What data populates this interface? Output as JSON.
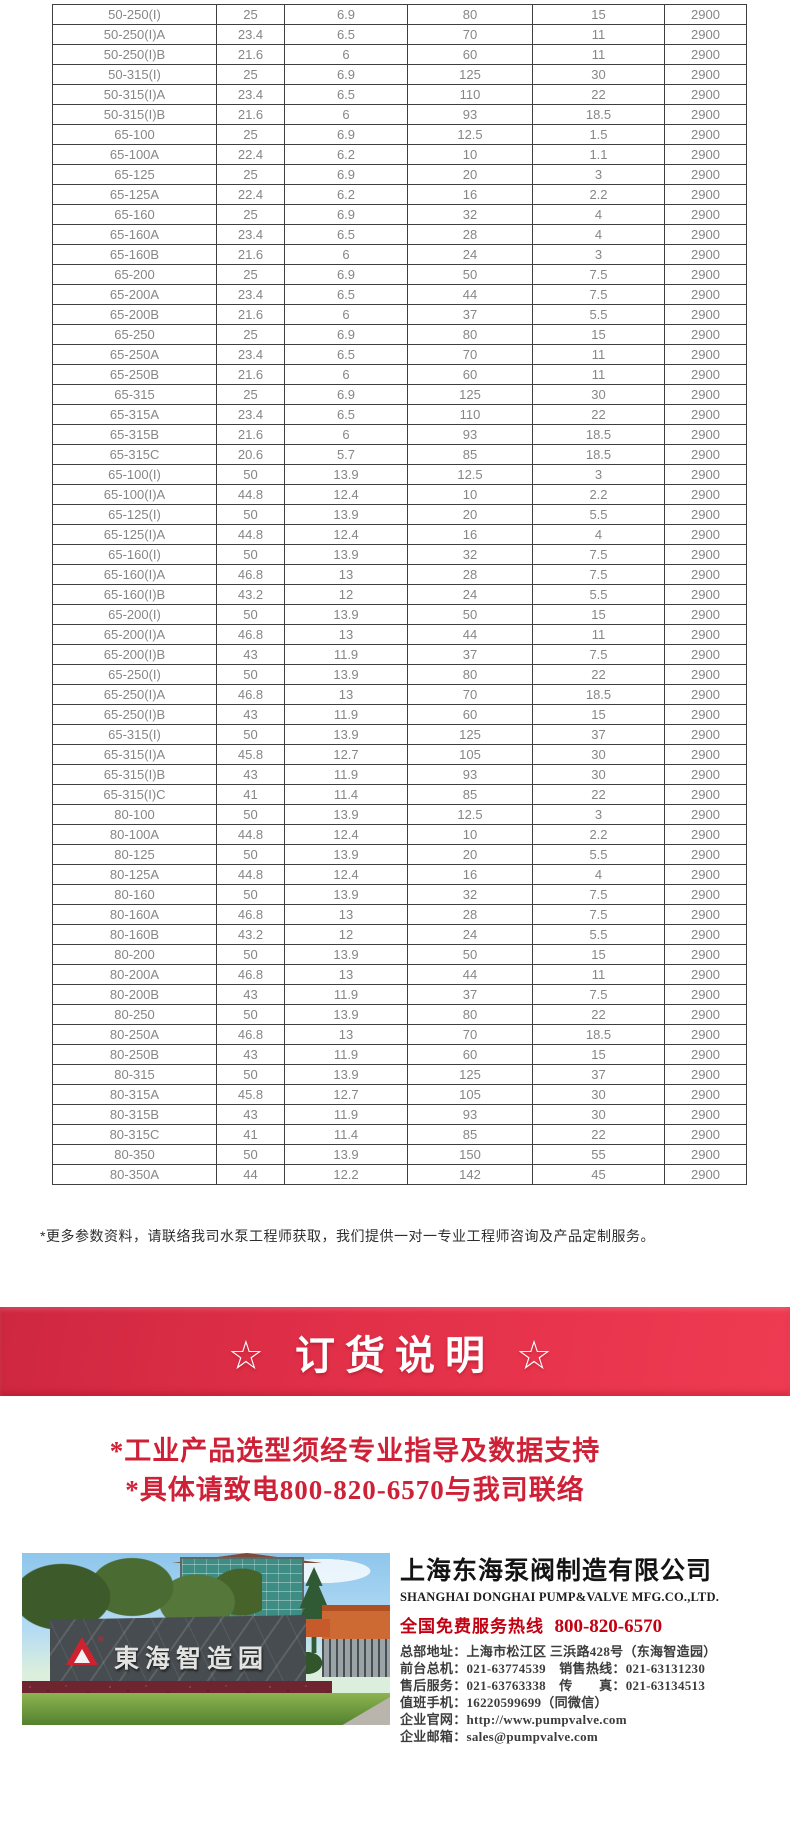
{
  "table": {
    "rows": [
      [
        "50-250(I)",
        "25",
        "6.9",
        "80",
        "15",
        "2900"
      ],
      [
        "50-250(I)A",
        "23.4",
        "6.5",
        "70",
        "11",
        "2900"
      ],
      [
        "50-250(I)B",
        "21.6",
        "6",
        "60",
        "11",
        "2900"
      ],
      [
        "50-315(I)",
        "25",
        "6.9",
        "125",
        "30",
        "2900"
      ],
      [
        "50-315(I)A",
        "23.4",
        "6.5",
        "110",
        "22",
        "2900"
      ],
      [
        "50-315(I)B",
        "21.6",
        "6",
        "93",
        "18.5",
        "2900"
      ],
      [
        "65-100",
        "25",
        "6.9",
        "12.5",
        "1.5",
        "2900"
      ],
      [
        "65-100A",
        "22.4",
        "6.2",
        "10",
        "1.1",
        "2900"
      ],
      [
        "65-125",
        "25",
        "6.9",
        "20",
        "3",
        "2900"
      ],
      [
        "65-125A",
        "22.4",
        "6.2",
        "16",
        "2.2",
        "2900"
      ],
      [
        "65-160",
        "25",
        "6.9",
        "32",
        "4",
        "2900"
      ],
      [
        "65-160A",
        "23.4",
        "6.5",
        "28",
        "4",
        "2900"
      ],
      [
        "65-160B",
        "21.6",
        "6",
        "24",
        "3",
        "2900"
      ],
      [
        "65-200",
        "25",
        "6.9",
        "50",
        "7.5",
        "2900"
      ],
      [
        "65-200A",
        "23.4",
        "6.5",
        "44",
        "7.5",
        "2900"
      ],
      [
        "65-200B",
        "21.6",
        "6",
        "37",
        "5.5",
        "2900"
      ],
      [
        "65-250",
        "25",
        "6.9",
        "80",
        "15",
        "2900"
      ],
      [
        "65-250A",
        "23.4",
        "6.5",
        "70",
        "11",
        "2900"
      ],
      [
        "65-250B",
        "21.6",
        "6",
        "60",
        "11",
        "2900"
      ],
      [
        "65-315",
        "25",
        "6.9",
        "125",
        "30",
        "2900"
      ],
      [
        "65-315A",
        "23.4",
        "6.5",
        "110",
        "22",
        "2900"
      ],
      [
        "65-315B",
        "21.6",
        "6",
        "93",
        "18.5",
        "2900"
      ],
      [
        "65-315C",
        "20.6",
        "5.7",
        "85",
        "18.5",
        "2900"
      ],
      [
        "65-100(I)",
        "50",
        "13.9",
        "12.5",
        "3",
        "2900"
      ],
      [
        "65-100(I)A",
        "44.8",
        "12.4",
        "10",
        "2.2",
        "2900"
      ],
      [
        "65-125(I)",
        "50",
        "13.9",
        "20",
        "5.5",
        "2900"
      ],
      [
        "65-125(I)A",
        "44.8",
        "12.4",
        "16",
        "4",
        "2900"
      ],
      [
        "65-160(I)",
        "50",
        "13.9",
        "32",
        "7.5",
        "2900"
      ],
      [
        "65-160(I)A",
        "46.8",
        "13",
        "28",
        "7.5",
        "2900"
      ],
      [
        "65-160(I)B",
        "43.2",
        "12",
        "24",
        "5.5",
        "2900"
      ],
      [
        "65-200(I)",
        "50",
        "13.9",
        "50",
        "15",
        "2900"
      ],
      [
        "65-200(I)A",
        "46.8",
        "13",
        "44",
        "11",
        "2900"
      ],
      [
        "65-200(I)B",
        "43",
        "11.9",
        "37",
        "7.5",
        "2900"
      ],
      [
        "65-250(I)",
        "50",
        "13.9",
        "80",
        "22",
        "2900"
      ],
      [
        "65-250(I)A",
        "46.8",
        "13",
        "70",
        "18.5",
        "2900"
      ],
      [
        "65-250(I)B",
        "43",
        "11.9",
        "60",
        "15",
        "2900"
      ],
      [
        "65-315(I)",
        "50",
        "13.9",
        "125",
        "37",
        "2900"
      ],
      [
        "65-315(I)A",
        "45.8",
        "12.7",
        "105",
        "30",
        "2900"
      ],
      [
        "65-315(I)B",
        "43",
        "11.9",
        "93",
        "30",
        "2900"
      ],
      [
        "65-315(I)C",
        "41",
        "11.4",
        "85",
        "22",
        "2900"
      ],
      [
        "80-100",
        "50",
        "13.9",
        "12.5",
        "3",
        "2900"
      ],
      [
        "80-100A",
        "44.8",
        "12.4",
        "10",
        "2.2",
        "2900"
      ],
      [
        "80-125",
        "50",
        "13.9",
        "20",
        "5.5",
        "2900"
      ],
      [
        "80-125A",
        "44.8",
        "12.4",
        "16",
        "4",
        "2900"
      ],
      [
        "80-160",
        "50",
        "13.9",
        "32",
        "7.5",
        "2900"
      ],
      [
        "80-160A",
        "46.8",
        "13",
        "28",
        "7.5",
        "2900"
      ],
      [
        "80-160B",
        "43.2",
        "12",
        "24",
        "5.5",
        "2900"
      ],
      [
        "80-200",
        "50",
        "13.9",
        "50",
        "15",
        "2900"
      ],
      [
        "80-200A",
        "46.8",
        "13",
        "44",
        "11",
        "2900"
      ],
      [
        "80-200B",
        "43",
        "11.9",
        "37",
        "7.5",
        "2900"
      ],
      [
        "80-250",
        "50",
        "13.9",
        "80",
        "22",
        "2900"
      ],
      [
        "80-250A",
        "46.8",
        "13",
        "70",
        "18.5",
        "2900"
      ],
      [
        "80-250B",
        "43",
        "11.9",
        "60",
        "15",
        "2900"
      ],
      [
        "80-315",
        "50",
        "13.9",
        "125",
        "37",
        "2900"
      ],
      [
        "80-315A",
        "45.8",
        "12.7",
        "105",
        "30",
        "2900"
      ],
      [
        "80-315B",
        "43",
        "11.9",
        "93",
        "30",
        "2900"
      ],
      [
        "80-315C",
        "41",
        "11.4",
        "85",
        "22",
        "2900"
      ],
      [
        "80-350",
        "50",
        "13.9",
        "150",
        "55",
        "2900"
      ],
      [
        "80-350A",
        "44",
        "12.2",
        "142",
        "45",
        "2900"
      ]
    ]
  },
  "note": "*更多参数资料，请联络我司水泵工程师获取，我们提供一对一专业工程师咨询及产品定制服务。",
  "order_banner": {
    "title": "☆ 订货说明 ☆"
  },
  "claims": {
    "line1": "*工业产品选型须经专业指导及数据支持",
    "line2": "*具体请致电800-820-6570与我司联络"
  },
  "footer": {
    "photo_sign": "東海智造园",
    "company_cn": "上海东海泵阀制造有限公司",
    "company_en": "SHANGHAI DONGHAI PUMP&VALVE MFG.CO.,LTD.",
    "hotline_label": "全国免费服务热线",
    "hotline_number": "800-820-6570",
    "contact_lines": [
      "总部地址：上海市松江区 三浜路428号（东海智造园）",
      "前台总机：021-63774539　销售热线：021-63131230",
      "售后服务：021-63763338　传　　真：021-63134513",
      "值班手机：16220599699（同微信）",
      "企业官网：http://www.pumpvalve.com",
      "企业邮箱：sales@pumpvalve.com"
    ]
  },
  "colors": {
    "banner_red_start": "#cf2740",
    "banner_red_end": "#ef3b52",
    "claim_red": "#ce2036",
    "hotline_red": "#c20011",
    "table_text": "#868686",
    "table_border": "#3f3f3f"
  }
}
